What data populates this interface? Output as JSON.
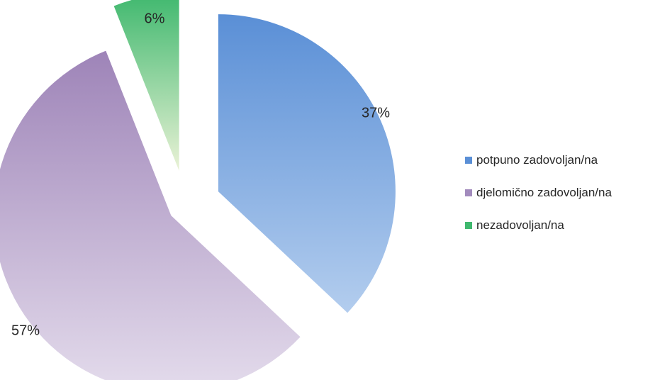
{
  "chart_data": {
    "type": "pie",
    "slices": [
      {
        "label": "potpuno zadovoljan/na",
        "value": 37,
        "value_label": "37%",
        "color": "#5a8fd6"
      },
      {
        "label": "djelomično zadovoljan/na",
        "value": 57,
        "value_label": "57%",
        "color": "#a28bbd"
      },
      {
        "label": "nezadovoljan/na",
        "value": 6,
        "value_label": "6%",
        "color": "#3fb86e"
      }
    ],
    "exploded": true,
    "legend_position": "right"
  }
}
